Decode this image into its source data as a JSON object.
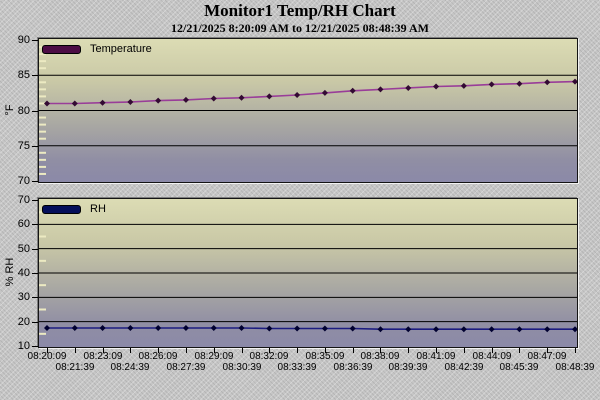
{
  "header": {
    "title": "Monitor1 Temp/RH Chart",
    "subtitle": "12/21/2025 8:20:09 AM to 12/21/2025 08:48:39 AM"
  },
  "colors": {
    "window_background": "#c6c6c6",
    "plot_gradient_top": "#dcdcb4",
    "plot_gradient_bottom": "#8b89a8",
    "grid": "#000000",
    "minor_tick": "#eceac2",
    "text": "#000000"
  },
  "x_axis": {
    "labels": [
      "08:20:09",
      "08:21:39",
      "08:23:09",
      "08:24:39",
      "08:26:09",
      "08:27:39",
      "08:29:09",
      "08:30:39",
      "08:32:09",
      "08:33:39",
      "08:35:09",
      "08:36:39",
      "08:38:09",
      "08:39:39",
      "08:41:09",
      "08:42:39",
      "08:44:09",
      "08:45:39",
      "08:47:09",
      "08:48:39"
    ]
  },
  "chart_data": [
    {
      "type": "line",
      "series_name": "Temperature",
      "ylabel": "°F",
      "ylim": [
        70,
        90
      ],
      "yticks": [
        70,
        75,
        80,
        85,
        90
      ],
      "minor_tick_step": 1,
      "grid": true,
      "legend_position": "top-left",
      "line_color": "#993d99",
      "marker_color": "#330a33",
      "legend_swatch_color": "#4d0d45",
      "x": [
        "08:20:09",
        "08:21:39",
        "08:23:09",
        "08:24:39",
        "08:26:09",
        "08:27:39",
        "08:29:09",
        "08:30:39",
        "08:32:09",
        "08:33:39",
        "08:35:09",
        "08:36:39",
        "08:38:09",
        "08:39:39",
        "08:41:09",
        "08:42:39",
        "08:44:09",
        "08:45:39",
        "08:47:09",
        "08:48:39"
      ],
      "values": [
        81.0,
        81.0,
        81.1,
        81.2,
        81.4,
        81.5,
        81.7,
        81.8,
        82.0,
        82.2,
        82.5,
        82.8,
        83.0,
        83.2,
        83.4,
        83.5,
        83.7,
        83.8,
        84.0,
        84.1
      ]
    },
    {
      "type": "line",
      "series_name": "RH",
      "ylabel": "% RH",
      "ylim": [
        10,
        70
      ],
      "yticks": [
        10,
        20,
        30,
        40,
        50,
        60,
        70
      ],
      "minor_tick_step": 5,
      "grid": true,
      "legend_position": "top-left",
      "line_color": "#1c1c80",
      "marker_color": "#000030",
      "legend_swatch_color": "#050f5a",
      "x": [
        "08:20:09",
        "08:21:39",
        "08:23:09",
        "08:24:39",
        "08:26:09",
        "08:27:39",
        "08:29:09",
        "08:30:39",
        "08:32:09",
        "08:33:39",
        "08:35:09",
        "08:36:39",
        "08:38:09",
        "08:39:39",
        "08:41:09",
        "08:42:39",
        "08:44:09",
        "08:45:39",
        "08:47:09",
        "08:48:39"
      ],
      "values": [
        17.4,
        17.4,
        17.4,
        17.4,
        17.4,
        17.4,
        17.4,
        17.4,
        17.2,
        17.2,
        17.2,
        17.2,
        16.9,
        16.9,
        16.9,
        16.9,
        16.9,
        16.9,
        16.9,
        16.9
      ]
    }
  ]
}
